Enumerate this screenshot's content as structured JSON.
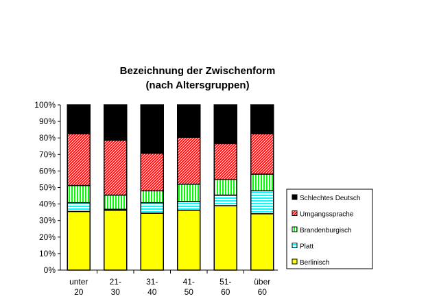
{
  "chart_data": {
    "type": "bar",
    "stacked": true,
    "title": [
      "Bezeichnung der Zwischenform",
      "(nach Altersgruppen)"
    ],
    "xlabel": "",
    "ylabel": "",
    "ylim": [
      0,
      100
    ],
    "yticks": [
      "0%",
      "10%",
      "20%",
      "30%",
      "40%",
      "50%",
      "60%",
      "70%",
      "80%",
      "90%",
      "100%"
    ],
    "categories": [
      [
        "unter",
        "20"
      ],
      [
        "21-",
        "30"
      ],
      [
        "31-",
        "40"
      ],
      [
        "41-",
        "50"
      ],
      [
        "51-",
        "60"
      ],
      [
        "über",
        "60"
      ]
    ],
    "series": [
      {
        "name": "Berlinisch",
        "color": "#ffff00",
        "values": [
          35.5,
          36.2,
          34.4,
          36.2,
          39.0,
          34.1
        ]
      },
      {
        "name": "Platt",
        "color": "#00ffff",
        "values": [
          5.3,
          0.6,
          6.4,
          5.3,
          6.4,
          13.9
        ]
      },
      {
        "name": "Brandenburgisch",
        "color": "#00ff00",
        "values": [
          10.4,
          8.6,
          7.2,
          10.5,
          9.5,
          10.1
        ]
      },
      {
        "name": "Umgangssprache",
        "color": "#ff0000",
        "values": [
          31.3,
          33.2,
          22.7,
          28.4,
          21.7,
          24.4
        ]
      },
      {
        "name": "Schlechtes Deutsch",
        "color": "#0000ff",
        "values": [
          17.5,
          21.4,
          29.3,
          19.6,
          23.4,
          17.5
        ]
      }
    ],
    "legend_order": [
      "Schlechtes Deutsch",
      "Umgangssprache",
      "Brandenburgisch",
      "Platt",
      "Berlinisch"
    ],
    "legend_position": "right",
    "grid": false
  }
}
